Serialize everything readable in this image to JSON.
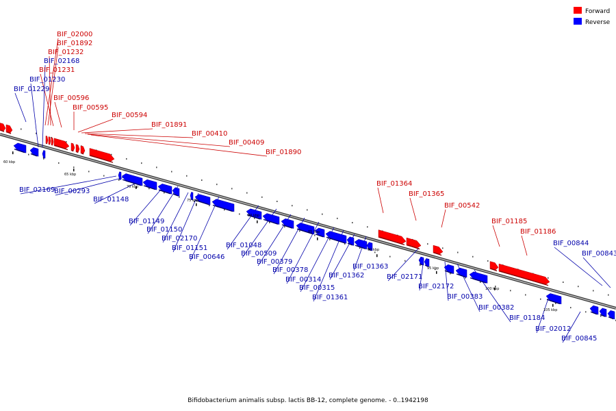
{
  "caption": "Bifidobacterium animalis subsp. lactis BB-12, complete genome. - 0..1942198",
  "legend": [
    {
      "label": "Forward",
      "color": "#ff0000"
    },
    {
      "label": "Reverse",
      "color": "#0000ff"
    }
  ],
  "colors": {
    "forward": "#ff0000",
    "reverse": "#0000ff",
    "backbone": "#888888"
  },
  "chart_data": {
    "type": "genome-map",
    "ticks": [
      "60 kbp",
      "65 kbp",
      "70 kbp",
      "75 kbp",
      "80 kbp",
      "85 kbp",
      "90 kbp",
      "95 kbp",
      "100 kbp",
      "105 kbp"
    ],
    "forward_labels": [
      "BIF_02000",
      "BIF_01892",
      "BIF_01232",
      "BIF_01231",
      "BIF_00596",
      "BIF_00595",
      "BIF_00594",
      "BIF_01891",
      "BIF_00410",
      "BIF_00409",
      "BIF_01890",
      "BIF_01364",
      "BIF_01365",
      "BIF_00542",
      "BIF_01185",
      "BIF_01186"
    ],
    "reverse_labels": [
      "BIF_02168",
      "BIF_01230",
      "BIF_01229",
      "BIF_02169",
      "BIF_00293",
      "BIF_01148",
      "BIF_01149",
      "BIF_01150",
      "BIF_02170",
      "BIF_01151",
      "BIF_00646",
      "BIF_01048",
      "BIF_00509",
      "BIF_00379",
      "BIF_00378",
      "BIF_00314",
      "BIF_00315",
      "BIF_01361",
      "BIF_01362",
      "BIF_01363",
      "BIF_02171",
      "BIF_02172",
      "BIF_00383",
      "BIF_00382",
      "BIF_01184",
      "BIF_02012",
      "BIF_00845",
      "BIF_00844",
      "BIF_00843"
    ]
  }
}
